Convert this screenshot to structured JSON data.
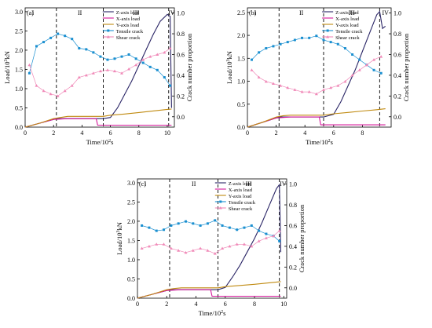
{
  "figure": {
    "colors": {
      "z": "#2a2566",
      "x": "#d4189a",
      "y": "#c08a10",
      "tensile": "#1a8fd0",
      "shear": "#f089b8",
      "axis": "#000000",
      "stage": "#000000"
    }
  },
  "chart_data": [
    {
      "panel_label": "(a)",
      "type": "line",
      "xlabel": "Time/10²s",
      "ylabel": "Load/10³kN",
      "ylabel_right": "Crack number proportion",
      "xlim": [
        0,
        10.5
      ],
      "ylim": [
        0,
        3.1
      ],
      "ylim_right": [
        -0.1,
        1.05
      ],
      "x_ticks": [
        "0",
        "2",
        "4",
        "6",
        "8",
        "10"
      ],
      "y_ticks": [
        "0.0",
        "0.5",
        "1.0",
        "1.5",
        "2.0",
        "2.5",
        "3.0"
      ],
      "y_ticks_right": [
        "0.0",
        "0.2",
        "0.4",
        "0.6",
        "0.8",
        "1.0"
      ],
      "stage_labels": [
        "I",
        "II",
        "III",
        "IV"
      ],
      "stage_bounds": [
        2.2,
        5.5,
        10.1
      ],
      "legend": {
        "position": "top-center",
        "entries": [
          "Z-axis load",
          "X-axis load",
          "Y-axis load",
          "Tensile crack",
          "Shear crack"
        ]
      },
      "series": [
        {
          "name": "Z-axis load",
          "axis": "left",
          "x": [
            0,
            1,
            2,
            2.2,
            3,
            4,
            5,
            5.5,
            6,
            6.5,
            7,
            7.5,
            8,
            8.5,
            9,
            9.5,
            10,
            10.2,
            10.3
          ],
          "y": [
            0,
            0.1,
            0.2,
            0.22,
            0.22,
            0.22,
            0.22,
            0.22,
            0.25,
            0.5,
            0.85,
            1.2,
            1.6,
            2.0,
            2.4,
            2.75,
            2.93,
            2.88,
            0.5
          ]
        },
        {
          "name": "X-axis load",
          "axis": "left",
          "x": [
            0,
            1,
            2,
            3,
            4,
            5,
            5.1,
            6,
            7,
            8,
            9,
            10,
            10.3
          ],
          "y": [
            0,
            0.1,
            0.2,
            0.22,
            0.22,
            0.22,
            0.05,
            0.05,
            0.05,
            0.05,
            0.05,
            0.05,
            0.05
          ]
        },
        {
          "name": "Y-axis load",
          "axis": "left",
          "x": [
            0,
            1,
            2,
            2.5,
            3,
            4,
            5,
            5.5,
            6,
            7,
            8,
            9,
            10,
            10.3
          ],
          "y": [
            0,
            0.1,
            0.22,
            0.25,
            0.28,
            0.28,
            0.28,
            0.28,
            0.31,
            0.34,
            0.38,
            0.42,
            0.46,
            0.47
          ]
        },
        {
          "name": "Tensile crack",
          "axis": "right",
          "x": [
            0.3,
            0.8,
            1.3,
            1.8,
            2.3,
            2.8,
            3.3,
            3.8,
            4.3,
            4.8,
            5.3,
            5.8,
            6.3,
            6.8,
            7.3,
            7.8,
            8.3,
            8.8,
            9.3,
            9.8,
            10.2
          ],
          "y": [
            0.42,
            0.68,
            0.72,
            0.76,
            0.8,
            0.78,
            0.75,
            0.66,
            0.65,
            0.62,
            0.58,
            0.55,
            0.56,
            0.58,
            0.6,
            0.56,
            0.52,
            0.48,
            0.45,
            0.38,
            0.3
          ]
        },
        {
          "name": "Shear crack",
          "axis": "right",
          "x": [
            0.3,
            0.8,
            1.3,
            1.8,
            2.3,
            2.8,
            3.3,
            3.8,
            4.3,
            4.8,
            5.3,
            5.8,
            6.3,
            6.8,
            7.3,
            7.8,
            8.3,
            8.8,
            9.3,
            9.8,
            10.2
          ],
          "y": [
            0.5,
            0.3,
            0.25,
            0.22,
            0.2,
            0.25,
            0.3,
            0.38,
            0.4,
            0.42,
            0.44,
            0.45,
            0.44,
            0.42,
            0.46,
            0.5,
            0.55,
            0.58,
            0.6,
            0.62,
            0.66
          ]
        }
      ]
    },
    {
      "panel_label": "(b)",
      "type": "line",
      "xlabel": "Time/10²s",
      "ylabel": "Load/10³kN",
      "ylabel_right": "Crack number proportion",
      "xlim": [
        0,
        10.0
      ],
      "ylim": [
        0,
        2.6
      ],
      "ylim_right": [
        -0.1,
        1.05
      ],
      "x_ticks": [
        "0",
        "2",
        "4",
        "6",
        "8"
      ],
      "y_ticks": [
        "0.0",
        "0.5",
        "1.0",
        "1.5",
        "2.0",
        "2.5"
      ],
      "y_ticks_right": [
        "0.0",
        "0.2",
        "0.4",
        "0.6",
        "0.8",
        "1.0"
      ],
      "stage_labels": [
        "I",
        "II",
        "III",
        "IV"
      ],
      "stage_bounds": [
        2.2,
        5.3,
        9.2
      ],
      "legend": {
        "position": "top-center",
        "entries": [
          "Z-axis load",
          "X-axis load",
          "Y-axis load",
          "Tensile crack",
          "Shear crack"
        ]
      },
      "series": [
        {
          "name": "Z-axis load",
          "axis": "left",
          "x": [
            0,
            1,
            2,
            2.2,
            3,
            4,
            5,
            5.3,
            6,
            6.5,
            7,
            7.5,
            8,
            8.5,
            9,
            9.2,
            9.4,
            9.6
          ],
          "y": [
            0,
            0.1,
            0.2,
            0.22,
            0.22,
            0.22,
            0.22,
            0.22,
            0.28,
            0.55,
            0.9,
            1.25,
            1.65,
            2.05,
            2.45,
            2.52,
            2.15,
            2.2
          ]
        },
        {
          "name": "X-axis load",
          "axis": "left",
          "x": [
            0,
            1,
            2,
            3,
            4,
            5,
            5.1,
            6,
            7,
            8,
            9,
            9.6
          ],
          "y": [
            0,
            0.1,
            0.2,
            0.22,
            0.22,
            0.22,
            0.05,
            0.05,
            0.05,
            0.05,
            0.05,
            0.05
          ]
        },
        {
          "name": "Y-axis load",
          "axis": "left",
          "x": [
            0,
            1,
            2,
            2.5,
            3,
            4,
            5,
            5.3,
            6,
            7,
            8,
            9,
            9.6
          ],
          "y": [
            0,
            0.1,
            0.22,
            0.25,
            0.26,
            0.26,
            0.26,
            0.26,
            0.29,
            0.32,
            0.35,
            0.38,
            0.4
          ]
        },
        {
          "name": "Tensile crack",
          "axis": "right",
          "x": [
            0.3,
            0.8,
            1.3,
            1.8,
            2.3,
            2.8,
            3.3,
            3.8,
            4.3,
            4.8,
            5.3,
            5.8,
            6.3,
            6.8,
            7.3,
            7.8,
            8.3,
            8.8,
            9.3
          ],
          "y": [
            0.55,
            0.62,
            0.66,
            0.68,
            0.7,
            0.72,
            0.74,
            0.76,
            0.76,
            0.78,
            0.74,
            0.72,
            0.7,
            0.66,
            0.6,
            0.55,
            0.5,
            0.45,
            0.42
          ]
        },
        {
          "name": "Shear crack",
          "axis": "right",
          "x": [
            0.3,
            0.8,
            1.3,
            1.8,
            2.3,
            2.8,
            3.3,
            3.8,
            4.3,
            4.8,
            5.3,
            5.8,
            6.3,
            6.8,
            7.3,
            7.8,
            8.3,
            8.8,
            9.3
          ],
          "y": [
            0.45,
            0.38,
            0.34,
            0.32,
            0.3,
            0.28,
            0.26,
            0.24,
            0.24,
            0.22,
            0.26,
            0.28,
            0.3,
            0.34,
            0.4,
            0.45,
            0.5,
            0.55,
            0.58
          ]
        }
      ]
    },
    {
      "panel_label": "(c)",
      "type": "line",
      "xlabel": "Time/10²s",
      "ylabel": "Load/10³kN",
      "ylabel_right": "Crack number proportion",
      "xlim": [
        0,
        10.2
      ],
      "ylim": [
        0,
        3.1
      ],
      "ylim_right": [
        -0.1,
        1.05
      ],
      "x_ticks": [
        "0",
        "2",
        "4",
        "6",
        "8",
        "10"
      ],
      "y_ticks": [
        "0.0",
        "0.5",
        "1.0",
        "1.5",
        "2.0",
        "2.5",
        "3.0"
      ],
      "y_ticks_right": [
        "0.0",
        "0.2",
        "0.4",
        "0.6",
        "0.8",
        "1.0"
      ],
      "stage_labels": [
        "I",
        "II",
        "III",
        "IV"
      ],
      "stage_bounds": [
        2.2,
        5.5,
        9.7
      ],
      "legend": {
        "position": "top-center",
        "entries": [
          "Z-axis load",
          "X-axis load",
          "Y-axis load",
          "Tensile crack",
          "Shear crack"
        ]
      },
      "series": [
        {
          "name": "Z-axis load",
          "axis": "left",
          "x": [
            0,
            1,
            2,
            2.2,
            3,
            4,
            5,
            5.5,
            6,
            6.5,
            7,
            7.5,
            8,
            8.5,
            9,
            9.5,
            9.7,
            9.8
          ],
          "y": [
            0,
            0.1,
            0.2,
            0.22,
            0.22,
            0.22,
            0.22,
            0.22,
            0.28,
            0.55,
            0.85,
            1.2,
            1.55,
            1.95,
            2.4,
            2.85,
            2.95,
            1.2
          ]
        },
        {
          "name": "X-axis load",
          "axis": "left",
          "x": [
            0,
            1,
            2,
            3,
            4,
            5,
            5.1,
            6,
            7,
            8,
            9,
            9.8
          ],
          "y": [
            0,
            0.1,
            0.2,
            0.22,
            0.22,
            0.22,
            0.05,
            0.05,
            0.05,
            0.05,
            0.05,
            0.05
          ]
        },
        {
          "name": "Y-axis load",
          "axis": "left",
          "x": [
            0,
            1,
            2,
            2.5,
            3,
            4,
            5,
            5.5,
            6,
            7,
            8,
            9,
            9.8
          ],
          "y": [
            0,
            0.1,
            0.22,
            0.25,
            0.27,
            0.27,
            0.27,
            0.27,
            0.3,
            0.33,
            0.36,
            0.4,
            0.43
          ]
        },
        {
          "name": "Tensile crack",
          "axis": "right",
          "x": [
            0.3,
            0.8,
            1.3,
            1.8,
            2.3,
            2.8,
            3.3,
            3.8,
            4.3,
            4.8,
            5.3,
            5.8,
            6.3,
            6.8,
            7.3,
            7.8,
            8.3,
            8.8,
            9.3,
            9.7
          ],
          "y": [
            0.6,
            0.58,
            0.55,
            0.56,
            0.6,
            0.62,
            0.64,
            0.62,
            0.6,
            0.62,
            0.65,
            0.6,
            0.58,
            0.56,
            0.58,
            0.6,
            0.55,
            0.52,
            0.5,
            0.45
          ]
        },
        {
          "name": "Shear crack",
          "axis": "right",
          "x": [
            0.3,
            0.8,
            1.3,
            1.8,
            2.3,
            2.8,
            3.3,
            3.8,
            4.3,
            4.8,
            5.3,
            5.8,
            6.3,
            6.8,
            7.3,
            7.8,
            8.3,
            8.8,
            9.3,
            9.7
          ],
          "y": [
            0.38,
            0.4,
            0.42,
            0.42,
            0.38,
            0.36,
            0.34,
            0.36,
            0.38,
            0.36,
            0.33,
            0.38,
            0.4,
            0.42,
            0.42,
            0.4,
            0.45,
            0.48,
            0.5,
            0.55
          ]
        }
      ]
    }
  ]
}
